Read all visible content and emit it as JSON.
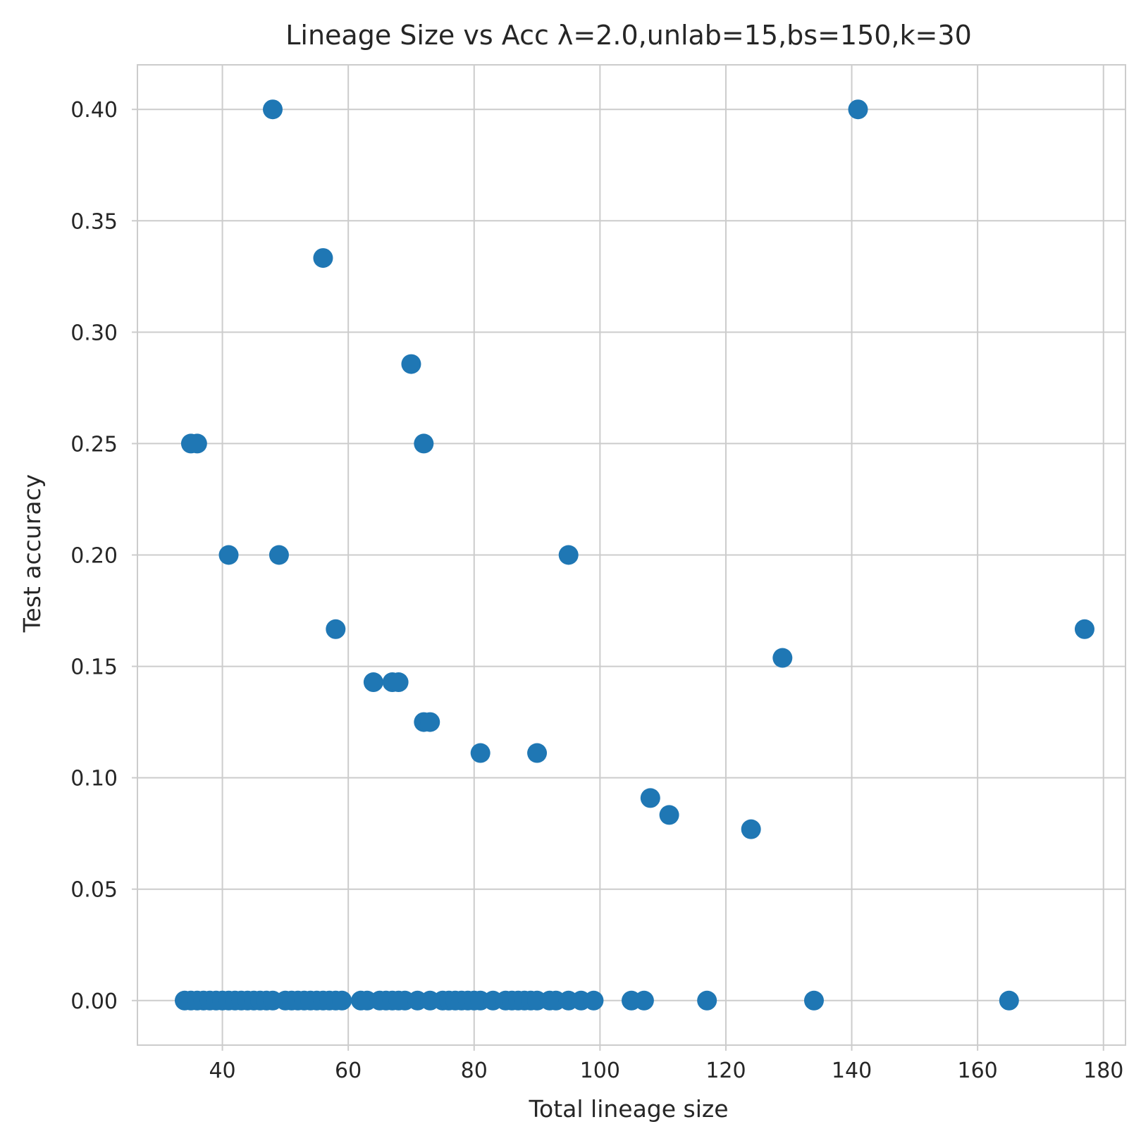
{
  "chart_data": {
    "type": "scatter",
    "title": "Lineage Size vs Acc λ=2.0,unlab=15,bs=150,k=30",
    "xlabel": "Total lineage size",
    "ylabel": "Test accuracy",
    "xlim": [
      26.5,
      183.5
    ],
    "ylim": [
      -0.02,
      0.42
    ],
    "xticks": [
      40,
      60,
      80,
      100,
      120,
      140,
      160,
      180
    ],
    "yticks": [
      0.0,
      0.05,
      0.1,
      0.15,
      0.2,
      0.25,
      0.3,
      0.35,
      0.4
    ],
    "ytick_labels": [
      "0.00",
      "0.05",
      "0.10",
      "0.15",
      "0.20",
      "0.25",
      "0.30",
      "0.35",
      "0.40"
    ],
    "grid": true,
    "marker_color": "#1f77b4",
    "points": [
      {
        "x": 48,
        "y": 0.4
      },
      {
        "x": 141,
        "y": 0.4
      },
      {
        "x": 56,
        "y": 0.3333
      },
      {
        "x": 70,
        "y": 0.2857
      },
      {
        "x": 35,
        "y": 0.25
      },
      {
        "x": 36,
        "y": 0.25
      },
      {
        "x": 72,
        "y": 0.25
      },
      {
        "x": 41,
        "y": 0.2
      },
      {
        "x": 49,
        "y": 0.2
      },
      {
        "x": 95,
        "y": 0.2
      },
      {
        "x": 58,
        "y": 0.1667
      },
      {
        "x": 177,
        "y": 0.1667
      },
      {
        "x": 129,
        "y": 0.1538
      },
      {
        "x": 64,
        "y": 0.1429
      },
      {
        "x": 67,
        "y": 0.1429
      },
      {
        "x": 68,
        "y": 0.1429
      },
      {
        "x": 72,
        "y": 0.125
      },
      {
        "x": 73,
        "y": 0.125
      },
      {
        "x": 81,
        "y": 0.1111
      },
      {
        "x": 90,
        "y": 0.1111
      },
      {
        "x": 108,
        "y": 0.0909
      },
      {
        "x": 111,
        "y": 0.0833
      },
      {
        "x": 124,
        "y": 0.0769
      },
      {
        "x": 34,
        "y": 0
      },
      {
        "x": 35,
        "y": 0
      },
      {
        "x": 36,
        "y": 0
      },
      {
        "x": 37,
        "y": 0
      },
      {
        "x": 38,
        "y": 0
      },
      {
        "x": 39,
        "y": 0
      },
      {
        "x": 40,
        "y": 0
      },
      {
        "x": 41,
        "y": 0
      },
      {
        "x": 42,
        "y": 0
      },
      {
        "x": 43,
        "y": 0
      },
      {
        "x": 44,
        "y": 0
      },
      {
        "x": 45,
        "y": 0
      },
      {
        "x": 46,
        "y": 0
      },
      {
        "x": 47,
        "y": 0
      },
      {
        "x": 48,
        "y": 0
      },
      {
        "x": 50,
        "y": 0
      },
      {
        "x": 51,
        "y": 0
      },
      {
        "x": 52,
        "y": 0
      },
      {
        "x": 53,
        "y": 0
      },
      {
        "x": 54,
        "y": 0
      },
      {
        "x": 55,
        "y": 0
      },
      {
        "x": 56,
        "y": 0
      },
      {
        "x": 57,
        "y": 0
      },
      {
        "x": 58,
        "y": 0
      },
      {
        "x": 59,
        "y": 0
      },
      {
        "x": 62,
        "y": 0
      },
      {
        "x": 63,
        "y": 0
      },
      {
        "x": 65,
        "y": 0
      },
      {
        "x": 66,
        "y": 0
      },
      {
        "x": 67,
        "y": 0
      },
      {
        "x": 68,
        "y": 0
      },
      {
        "x": 69,
        "y": 0
      },
      {
        "x": 71,
        "y": 0
      },
      {
        "x": 73,
        "y": 0
      },
      {
        "x": 75,
        "y": 0
      },
      {
        "x": 76,
        "y": 0
      },
      {
        "x": 77,
        "y": 0
      },
      {
        "x": 78,
        "y": 0
      },
      {
        "x": 79,
        "y": 0
      },
      {
        "x": 80,
        "y": 0
      },
      {
        "x": 81,
        "y": 0
      },
      {
        "x": 83,
        "y": 0
      },
      {
        "x": 85,
        "y": 0
      },
      {
        "x": 86,
        "y": 0
      },
      {
        "x": 87,
        "y": 0
      },
      {
        "x": 88,
        "y": 0
      },
      {
        "x": 89,
        "y": 0
      },
      {
        "x": 90,
        "y": 0
      },
      {
        "x": 92,
        "y": 0
      },
      {
        "x": 93,
        "y": 0
      },
      {
        "x": 95,
        "y": 0
      },
      {
        "x": 97,
        "y": 0
      },
      {
        "x": 99,
        "y": 0
      },
      {
        "x": 105,
        "y": 0
      },
      {
        "x": 107,
        "y": 0
      },
      {
        "x": 117,
        "y": 0
      },
      {
        "x": 134,
        "y": 0
      },
      {
        "x": 165,
        "y": 0
      }
    ]
  }
}
